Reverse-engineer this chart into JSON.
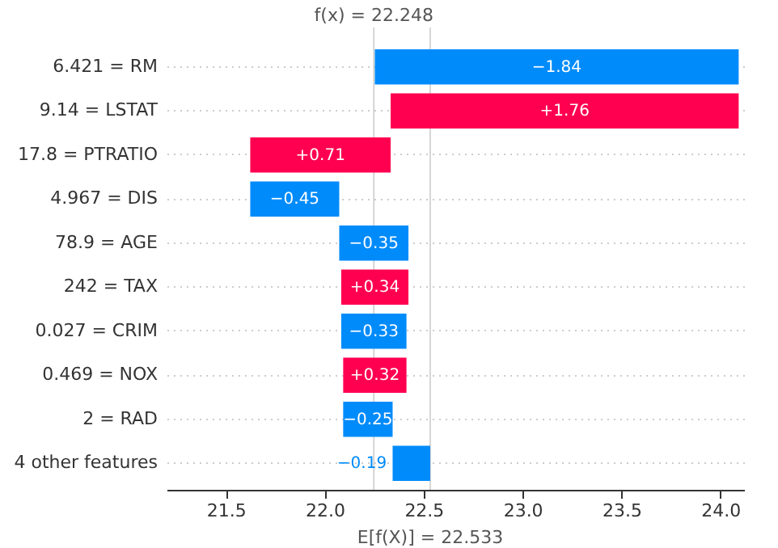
{
  "chart_data": {
    "type": "bar",
    "orientation": "horizontal",
    "categories": [
      "6.421 = RM",
      "9.14 = LSTAT",
      "17.8 = PTRATIO",
      "4.967 = DIS",
      "78.9 = AGE",
      "242 = TAX",
      "0.027 = CRIM",
      "0.469 = NOX",
      "2 = RAD",
      "4 other features"
    ],
    "values": [
      -1.84,
      1.76,
      0.71,
      -0.45,
      -0.35,
      0.34,
      -0.33,
      0.32,
      -0.25,
      -0.19
    ],
    "base": [
      24.093,
      22.333,
      21.623,
      22.073,
      22.423,
      22.083,
      22.413,
      22.093,
      22.343,
      22.533
    ],
    "colors": [
      "#008bfb",
      "#ff0051",
      "#ff0051",
      "#008bfb",
      "#008bfb",
      "#ff0051",
      "#008bfb",
      "#ff0051",
      "#008bfb",
      "#008bfb"
    ],
    "value_labels": [
      "−1.84",
      "+1.76",
      "+0.71",
      "−0.45",
      "−0.35",
      "+0.34",
      "−0.33",
      "+0.32",
      "−0.25",
      "−0.19"
    ],
    "xlim": [
      21.2,
      24.12
    ],
    "xticks": [
      21.5,
      {
        "value": 22,
        "label": "22.0"
      },
      22.5,
      {
        "value": 23,
        "label": "23.0"
      },
      23.5,
      {
        "value": 24,
        "label": "24.0"
      }
    ],
    "grid": "y",
    "ref_lines": [
      {
        "axis": "x",
        "value": 22.248,
        "label": "f(x) = 22.248",
        "color": "#cccccc"
      },
      {
        "axis": "x",
        "value": 22.533,
        "label": "E[f(X)] = 22.533",
        "color": "#cccccc"
      }
    ]
  }
}
